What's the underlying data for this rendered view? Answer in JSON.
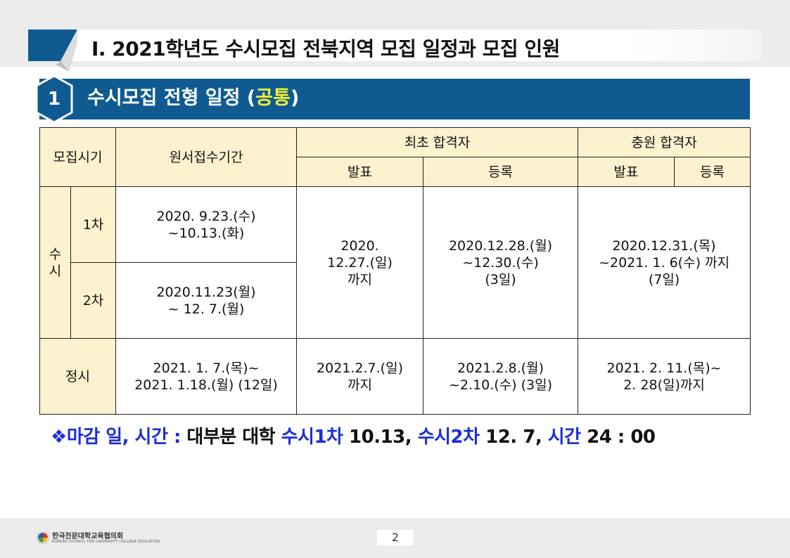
{
  "header": {
    "title": "Ⅰ. 2021학년도 수시모집 전북지역 모집 일정과 모집 인원"
  },
  "section": {
    "number": "1",
    "title_main": "수시모집 전형 일정 (",
    "title_highlight": "공통",
    "title_end": ")"
  },
  "table": {
    "headers": {
      "period": "모집시기",
      "application": "원서접수기간",
      "first_pass": "최초 합격자",
      "additional_pass": "충원 합격자",
      "announce_1": "발표",
      "register_1": "등록",
      "announce_2": "발표",
      "register_2": "등록"
    },
    "susi": {
      "label": "수시",
      "round1": {
        "label": "1차",
        "application_line1": "2020. 9.23.(수)",
        "application_line2": "~10.13.(화)"
      },
      "round2": {
        "label": "2차",
        "application_line1": "2020.11.23(월)",
        "application_line2": "~ 12. 7.(월)"
      },
      "first_announce": [
        "2020.",
        "12.27.(일)",
        "까지"
      ],
      "first_register": [
        "2020.12.28.(월)",
        "~12.30.(수)",
        "(3일)"
      ],
      "additional": [
        "2020.12.31.(목)",
        "~2021. 1. 6(수) 까지",
        "(7일)"
      ]
    },
    "jeongsi": {
      "label": "정시",
      "application": [
        "2021. 1. 7.(목)~",
        "2021. 1.18.(월) (12일)"
      ],
      "first_announce": [
        "2021.2.7.(일)",
        "까지"
      ],
      "first_register": [
        "2021.2.8.(월)",
        "~2.10.(수) (3일)"
      ],
      "additional": [
        "2021. 2. 11.(목)~",
        "2. 28(일)까지"
      ]
    }
  },
  "note": {
    "bullet": "❖",
    "part1": "마감 일, 시간 : ",
    "part2": "대부분 대학 ",
    "part3": "수시1차",
    "part4": " 10.13, ",
    "part5": "수시2차",
    "part6": " 12. 7, ",
    "part7": "시간",
    "part8": " 24 : 00"
  },
  "footer": {
    "org_name": "한국전문대학교육협의회",
    "org_name_en": "KOREAN COUNCIL FOR UNIVERSITY COLLEGE EDUCATION",
    "page_number": "2"
  },
  "colors": {
    "section_bar": "#0f5b91",
    "header_cell": "#fdf2cf",
    "highlight": "#f5ef3a",
    "note_blue": "#1c2fd6"
  }
}
